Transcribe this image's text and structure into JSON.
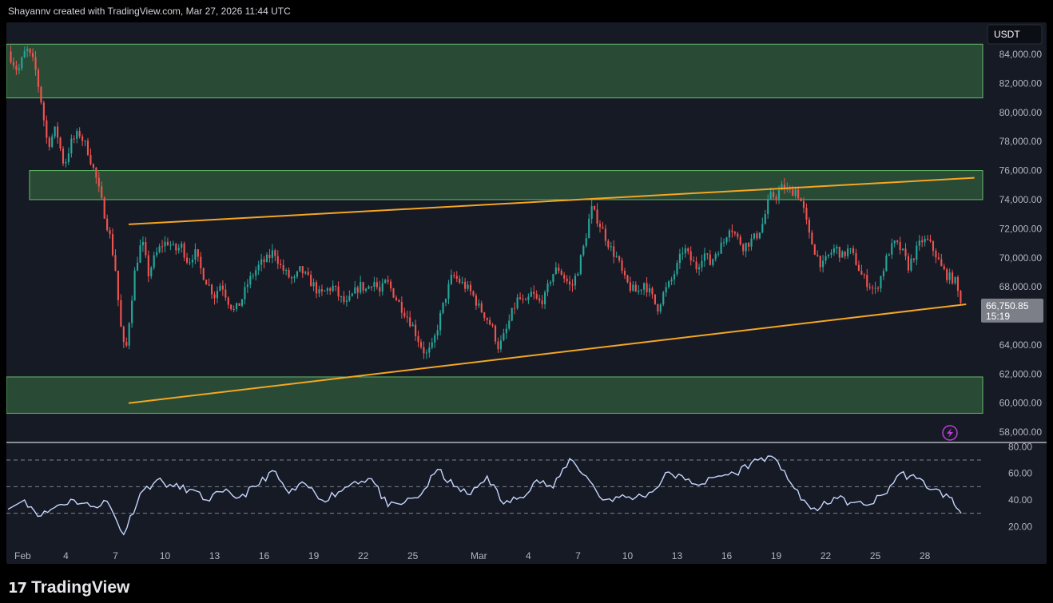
{
  "header": {
    "caption": "Shayannv created with TradingView.com, Mar 27, 2026 11:44 UTC"
  },
  "footer": {
    "logo_mark": "17",
    "logo_text": "TradingView"
  },
  "colors": {
    "panel_bg": "#161a25",
    "up": "#26a69a",
    "down": "#ef5350",
    "zone_fill": "#2f5a3a",
    "zone_border": "#66bb6a",
    "trendline": "#f5a623",
    "rsi_line": "#c5d6ff",
    "price_tag_bg": "#7c7f87",
    "currency_box_bg": "#0c0e15"
  },
  "chart_data": [
    {
      "type": "candlestick",
      "symbol_currency": "USDT",
      "title": "",
      "xlabel": "",
      "ylabel": "",
      "ylim": [
        57400,
        86200
      ],
      "x_range_days": [
        -0.6,
        58.5
      ],
      "x_ticks": [
        {
          "label": "Feb",
          "day": 0
        },
        {
          "label": "4",
          "day": 3
        },
        {
          "label": "7",
          "day": 6
        },
        {
          "label": "10",
          "day": 9
        },
        {
          "label": "13",
          "day": 12
        },
        {
          "label": "16",
          "day": 15
        },
        {
          "label": "19",
          "day": 18
        },
        {
          "label": "22",
          "day": 21
        },
        {
          "label": "25",
          "day": 24
        },
        {
          "label": "Mar",
          "day": 28
        },
        {
          "label": "4",
          "day": 31
        },
        {
          "label": "7",
          "day": 34
        },
        {
          "label": "10",
          "day": 37
        },
        {
          "label": "13",
          "day": 40
        },
        {
          "label": "16",
          "day": 43
        },
        {
          "label": "19",
          "day": 46
        },
        {
          "label": "22",
          "day": 49
        },
        {
          "label": "25",
          "day": 52
        },
        {
          "label": "28",
          "day": 55
        }
      ],
      "y_ticks": [
        "58,000.00",
        "60,000.00",
        "62,000.00",
        "64,000.00",
        "68,000.00",
        "70,000.00",
        "72,000.00",
        "74,000.00",
        "76,000.00",
        "78,000.00",
        "80,000.00",
        "82,000.00",
        "84,000.00"
      ],
      "current_price": {
        "value": 66750.85,
        "label": "66,750.85",
        "countdown": "15:19"
      },
      "price_path": [
        [
          -0.5,
          84200
        ],
        [
          0.1,
          82800
        ],
        [
          0.6,
          84400
        ],
        [
          1.1,
          83300
        ],
        [
          1.5,
          80800
        ],
        [
          1.9,
          77700
        ],
        [
          2.4,
          78900
        ],
        [
          2.9,
          76300
        ],
        [
          3.3,
          77900
        ],
        [
          3.8,
          78600
        ],
        [
          4.3,
          77500
        ],
        [
          4.8,
          75600
        ],
        [
          5.3,
          73200
        ],
        [
          5.7,
          71300
        ],
        [
          6.0,
          69200
        ],
        [
          6.3,
          65400
        ],
        [
          6.6,
          63200
        ],
        [
          6.9,
          66400
        ],
        [
          7.2,
          69300
        ],
        [
          7.6,
          71200
        ],
        [
          8.0,
          68900
        ],
        [
          8.4,
          70100
        ],
        [
          8.8,
          70900
        ],
        [
          9.2,
          71100
        ],
        [
          9.6,
          70500
        ],
        [
          10.0,
          70800
        ],
        [
          10.4,
          69700
        ],
        [
          10.8,
          70400
        ],
        [
          11.2,
          69100
        ],
        [
          11.6,
          68200
        ],
        [
          12.0,
          67400
        ],
        [
          12.4,
          68300
        ],
        [
          12.8,
          67100
        ],
        [
          13.2,
          66300
        ],
        [
          13.6,
          67000
        ],
        [
          14.0,
          68200
        ],
        [
          14.4,
          69000
        ],
        [
          14.8,
          69600
        ],
        [
          15.2,
          69900
        ],
        [
          15.6,
          70500
        ],
        [
          16.0,
          69400
        ],
        [
          16.4,
          68800
        ],
        [
          16.8,
          68400
        ],
        [
          17.2,
          69200
        ],
        [
          17.6,
          68600
        ],
        [
          18.0,
          68100
        ],
        [
          18.4,
          67400
        ],
        [
          18.8,
          67800
        ],
        [
          19.2,
          68000
        ],
        [
          19.6,
          67200
        ],
        [
          20.0,
          66800
        ],
        [
          20.4,
          67500
        ],
        [
          20.8,
          68100
        ],
        [
          21.2,
          67800
        ],
        [
          21.6,
          68500
        ],
        [
          22.0,
          67600
        ],
        [
          22.4,
          68400
        ],
        [
          22.8,
          67600
        ],
        [
          23.2,
          66800
        ],
        [
          23.6,
          66100
        ],
        [
          24.0,
          65300
        ],
        [
          24.4,
          64200
        ],
        [
          24.8,
          63300
        ],
        [
          25.2,
          63900
        ],
        [
          25.6,
          65700
        ],
        [
          26.0,
          67400
        ],
        [
          26.4,
          68800
        ],
        [
          26.8,
          68400
        ],
        [
          27.2,
          68000
        ],
        [
          27.6,
          67500
        ],
        [
          28.0,
          66600
        ],
        [
          28.4,
          66000
        ],
        [
          28.8,
          65200
        ],
        [
          29.2,
          63800
        ],
        [
          29.6,
          64800
        ],
        [
          30.0,
          66200
        ],
        [
          30.4,
          67300
        ],
        [
          30.8,
          66700
        ],
        [
          31.2,
          67600
        ],
        [
          31.6,
          66900
        ],
        [
          32.0,
          67300
        ],
        [
          32.4,
          68800
        ],
        [
          32.8,
          69300
        ],
        [
          33.2,
          68600
        ],
        [
          33.6,
          67900
        ],
        [
          34.0,
          69200
        ],
        [
          34.4,
          71000
        ],
        [
          34.8,
          73400
        ],
        [
          35.2,
          72600
        ],
        [
          35.6,
          71600
        ],
        [
          36.0,
          70600
        ],
        [
          36.4,
          69900
        ],
        [
          36.8,
          68500
        ],
        [
          37.2,
          67900
        ],
        [
          37.6,
          67600
        ],
        [
          38.0,
          68300
        ],
        [
          38.4,
          67500
        ],
        [
          38.8,
          66500
        ],
        [
          39.2,
          67600
        ],
        [
          39.6,
          68300
        ],
        [
          40.0,
          69400
        ],
        [
          40.4,
          70700
        ],
        [
          40.8,
          69900
        ],
        [
          41.2,
          69300
        ],
        [
          41.6,
          70400
        ],
        [
          42.0,
          69600
        ],
        [
          42.4,
          70500
        ],
        [
          42.8,
          71000
        ],
        [
          43.2,
          72300
        ],
        [
          43.6,
          71400
        ],
        [
          44.0,
          70800
        ],
        [
          44.4,
          71100
        ],
        [
          44.8,
          71500
        ],
        [
          45.2,
          72400
        ],
        [
          45.6,
          74200
        ],
        [
          46.0,
          74300
        ],
        [
          46.4,
          74900
        ],
        [
          46.8,
          74500
        ],
        [
          47.2,
          74700
        ],
        [
          47.6,
          73600
        ],
        [
          48.0,
          71500
        ],
        [
          48.4,
          70300
        ],
        [
          48.8,
          69400
        ],
        [
          49.2,
          70200
        ],
        [
          49.6,
          70700
        ],
        [
          50.0,
          70100
        ],
        [
          50.4,
          70600
        ],
        [
          50.8,
          69800
        ],
        [
          51.2,
          68700
        ],
        [
          51.6,
          68200
        ],
        [
          52.0,
          67700
        ],
        [
          52.4,
          68900
        ],
        [
          52.8,
          70400
        ],
        [
          53.2,
          71000
        ],
        [
          53.6,
          70500
        ],
        [
          54.0,
          69400
        ],
        [
          54.4,
          70300
        ],
        [
          54.8,
          71200
        ],
        [
          55.2,
          71100
        ],
        [
          55.6,
          70400
        ],
        [
          56.0,
          69300
        ],
        [
          56.4,
          68700
        ],
        [
          56.8,
          68500
        ],
        [
          57.2,
          66750
        ]
      ],
      "zones": [
        {
          "from": 81000,
          "to": 84700,
          "day_start": -0.6
        },
        {
          "from": 74000,
          "to": 76000,
          "day_start": 0.8
        },
        {
          "from": 59300,
          "to": 61800,
          "day_start": -0.6
        }
      ],
      "trendlines": [
        {
          "from": [
            6.8,
            72300
          ],
          "to": [
            58.0,
            75500
          ]
        },
        {
          "from": [
            6.8,
            60000
          ],
          "to": [
            57.5,
            66800
          ]
        }
      ]
    },
    {
      "type": "line",
      "indicator": "oscillator",
      "ylim": [
        10,
        82
      ],
      "y_ticks": [
        "20.00",
        "40.00",
        "60.00",
        "80.00"
      ],
      "dashed_levels": [
        30,
        50,
        70
      ],
      "x": [
        -0.5,
        0.5,
        1.5,
        2.5,
        3.5,
        4.5,
        5.5,
        6.5,
        7.5,
        8.5,
        9.5,
        10.5,
        11.5,
        12.5,
        13.5,
        14.5,
        15.5,
        16.5,
        17.5,
        18.5,
        19.5,
        20.5,
        21.5,
        22.5,
        23.5,
        24.5,
        25.5,
        26.5,
        27.5,
        28.5,
        29.5,
        30.5,
        31.5,
        32.5,
        33.5,
        34.5,
        35.5,
        36.5,
        37.5,
        38.5,
        39.5,
        40.5,
        41.5,
        42.5,
        43.5,
        44.5,
        45.5,
        46.5,
        47.5,
        48.5,
        49.5,
        50.5,
        51.5,
        52.5,
        53.5,
        54.5,
        55.5,
        56.5,
        57.2
      ],
      "values": [
        33,
        40,
        28,
        36,
        40,
        35,
        39,
        14,
        45,
        55,
        50,
        48,
        40,
        46,
        42,
        50,
        62,
        45,
        52,
        40,
        46,
        54,
        56,
        35,
        38,
        44,
        63,
        50,
        44,
        58,
        37,
        42,
        55,
        49,
        71,
        58,
        40,
        42,
        42,
        46,
        61,
        55,
        52,
        58,
        60,
        68,
        73,
        62,
        40,
        32,
        42,
        38,
        36,
        44,
        60,
        56,
        48,
        42,
        30
      ]
    }
  ]
}
